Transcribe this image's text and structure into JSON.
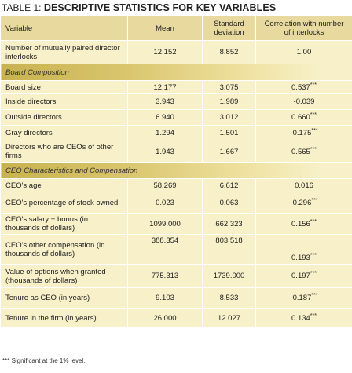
{
  "title": {
    "label": "TABLE 1:",
    "text": "DESCRIPTIVE STATISTICS FOR KEY VARIABLES"
  },
  "table": {
    "header": [
      "Variable",
      "Mean",
      "Standard deviation",
      "Correlation with number of interlocks"
    ],
    "rows": [
      {
        "variable": "Number of mutually paired director interlocks",
        "mean": "12.152",
        "sd": "8.852",
        "corr": "1.00",
        "sig": ""
      },
      {
        "section": "Board Composition"
      },
      {
        "variable": "Board size",
        "mean": "12.177",
        "sd": "3.075",
        "corr": "0.537",
        "sig": "***"
      },
      {
        "variable": "Inside directors",
        "mean": "3.943",
        "sd": "1.989",
        "corr": "-0.039",
        "sig": ""
      },
      {
        "variable": "Outside directors",
        "mean": "6.940",
        "sd": "3.012",
        "corr": "0.660",
        "sig": "***"
      },
      {
        "variable": "Gray directors",
        "mean": "1.294",
        "sd": "1.501",
        "corr": "-0.175",
        "sig": "***"
      },
      {
        "variable": "Directors who are CEOs of other firms",
        "mean": "1.943",
        "sd": "1.667",
        "corr": "0.565",
        "sig": "***"
      },
      {
        "section": "CEO Characteristics and Compensation"
      },
      {
        "variable": "CEO's age",
        "mean": "58.269",
        "sd": "6.612",
        "corr": "0.016",
        "sig": ""
      },
      {
        "variable": "CEO's percentage of stock owned",
        "mean": "0.023",
        "sd": "0.063",
        "corr": "-0.296",
        "sig": "***"
      },
      {
        "variable": "CEO's salary + bonus (in thousands of dollars)",
        "mean": "1099.000",
        "sd": "662.323",
        "corr": "0.156",
        "sig": "***"
      },
      {
        "variable": "CEO's other compensation (in thousands of dollars)",
        "mean": "388.354",
        "sd": "803.518",
        "corr": "0.193",
        "sig": "***"
      },
      {
        "variable": "Value of options when granted (thousands of dollars)",
        "mean": "775.313",
        "sd": "1739.000",
        "corr": "0.197",
        "sig": "***"
      },
      {
        "variable": "Tenure as CEO (in years)",
        "mean": "9.103",
        "sd": "8.533",
        "corr": "-0.187",
        "sig": "***"
      },
      {
        "variable": "Tenure in the firm (in years)",
        "mean": "26.000",
        "sd": "12.027",
        "corr": "0.134",
        "sig": "***"
      }
    ]
  },
  "footnote": "*** Significant at the 1% level."
}
